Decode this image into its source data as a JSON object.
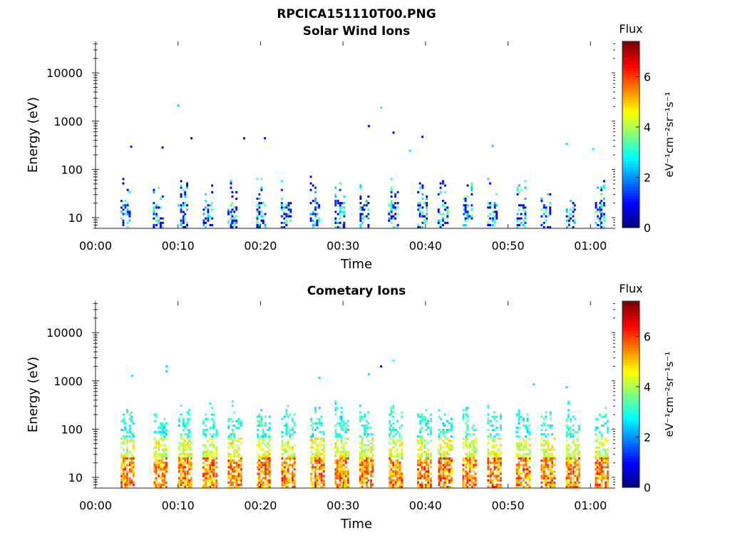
{
  "figure": {
    "title": "RPCICA151110T00.PNG"
  },
  "chart_data": [
    {
      "type": "heatmap",
      "title": "Solar Wind Ions",
      "xlabel": "Time",
      "ylabel": "Energy (eV)",
      "x_scale": "time",
      "y_scale": "log",
      "x_range_minutes": [
        0,
        63
      ],
      "ylim": [
        6,
        45000
      ],
      "x_tick_minutes": [
        0,
        10,
        20,
        30,
        40,
        50,
        60
      ],
      "x_tick_labels": [
        "00:00",
        "00:10",
        "00:20",
        "00:30",
        "00:40",
        "00:50",
        "01:00"
      ],
      "y_tick_values": [
        10,
        100,
        1000,
        10000
      ],
      "y_tick_labels": [
        "10",
        "100",
        "1000",
        "10000"
      ],
      "colorbar": {
        "label": "Flux",
        "units": "eV⁻¹cm⁻²sr⁻¹s⁻¹",
        "range": [
          0,
          7.4
        ],
        "ticks": [
          0,
          2,
          4,
          6
        ],
        "tick_labels": [
          "0",
          "2",
          "4",
          "6"
        ],
        "colormap": "jet"
      },
      "grid": false,
      "bursts_minute_approx": [
        3.5,
        7.5,
        10.5,
        13.5,
        16.5,
        20,
        23,
        26.5,
        29.5,
        32.5,
        36,
        39.5,
        42,
        45,
        48,
        51.5,
        54.5,
        57.5,
        61
      ],
      "isolated_points": [
        {
          "t": 9.9,
          "e": 2000,
          "v": 2.5
        },
        {
          "t": 34.5,
          "e": 1800,
          "v": 2.8
        },
        {
          "t": 33,
          "e": 750,
          "v": 0.9
        },
        {
          "t": 36,
          "e": 550,
          "v": 0.8
        },
        {
          "t": 39.5,
          "e": 450,
          "v": 0.8
        },
        {
          "t": 17.9,
          "e": 420,
          "v": 0.9
        },
        {
          "t": 20.4,
          "e": 420,
          "v": 0.9
        },
        {
          "t": 11.5,
          "e": 420,
          "v": 0.9
        },
        {
          "t": 4.2,
          "e": 280,
          "v": 1.0
        },
        {
          "t": 8,
          "e": 270,
          "v": 0.9
        },
        {
          "t": 48,
          "e": 290,
          "v": 2.5
        },
        {
          "t": 57,
          "e": 320,
          "v": 2.6
        },
        {
          "t": 60.2,
          "e": 250,
          "v": 2.7
        },
        {
          "t": 38,
          "e": 230,
          "v": 2.6
        }
      ]
    },
    {
      "type": "heatmap",
      "title": "Cometary Ions",
      "xlabel": "Time",
      "ylabel": "Energy (eV)",
      "x_scale": "time",
      "y_scale": "log",
      "x_range_minutes": [
        0,
        63
      ],
      "ylim": [
        6,
        45000
      ],
      "x_tick_minutes": [
        0,
        10,
        20,
        30,
        40,
        50,
        60
      ],
      "x_tick_labels": [
        "00:00",
        "00:10",
        "00:20",
        "00:30",
        "00:40",
        "00:50",
        "01:00"
      ],
      "y_tick_values": [
        10,
        100,
        1000,
        10000
      ],
      "y_tick_labels": [
        "10",
        "100",
        "1000",
        "10000"
      ],
      "colorbar": {
        "label": "Flux",
        "units": "eV⁻¹cm⁻²sr⁻¹s⁻¹",
        "range": [
          0,
          7.4
        ],
        "ticks": [
          0,
          2,
          4,
          6
        ],
        "tick_labels": [
          "0",
          "2",
          "4",
          "6"
        ],
        "colormap": "jet"
      },
      "grid": false,
      "bursts_minute_approx": [
        3.5,
        7.5,
        10.5,
        13.5,
        16.5,
        20,
        23,
        26.5,
        29.5,
        32.5,
        36,
        39.5,
        42,
        45,
        48,
        51.5,
        54.5,
        57.5,
        61
      ],
      "isolated_points": [
        {
          "t": 8.5,
          "e": 1900,
          "v": 2.5
        },
        {
          "t": 8.5,
          "e": 1500,
          "v": 2.5
        },
        {
          "t": 36,
          "e": 2500,
          "v": 3.1
        },
        {
          "t": 34.5,
          "e": 1900,
          "v": 1.0
        },
        {
          "t": 33,
          "e": 1300,
          "v": 2.6
        },
        {
          "t": 27,
          "e": 1100,
          "v": 2.6
        },
        {
          "t": 4.3,
          "e": 1200,
          "v": 2.6
        },
        {
          "t": 53,
          "e": 800,
          "v": 2.6
        },
        {
          "t": 57,
          "e": 700,
          "v": 2.6
        }
      ]
    }
  ]
}
